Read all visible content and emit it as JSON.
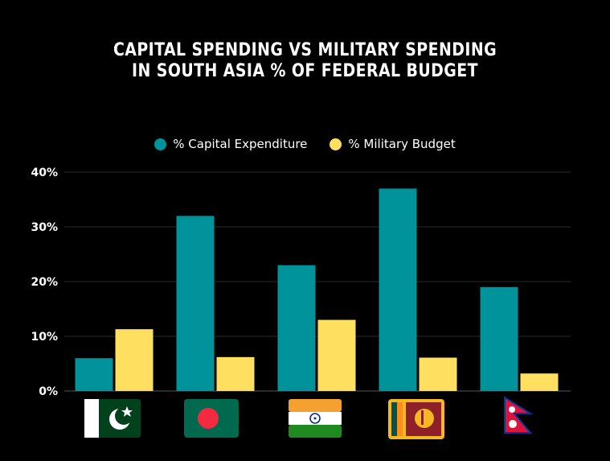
{
  "chart_data": {
    "type": "bar",
    "title_line1": "CAPITAL SPENDING VS MILITARY SPENDING",
    "title_line2": "IN SOUTH ASIA % OF FEDERAL BUDGET",
    "categories": [
      "Pakistan",
      "Bangladesh",
      "India",
      "Sri Lanka",
      "Nepal"
    ],
    "series": [
      {
        "name": "% Capital Expenditure",
        "color": "#00939b",
        "values": [
          6,
          32,
          23,
          37,
          19
        ]
      },
      {
        "name": "% Military Budget",
        "color": "#ffdf60",
        "values": [
          11.3,
          6.2,
          13,
          6.1,
          3.2
        ]
      }
    ],
    "ylim": [
      0,
      40
    ],
    "yticks": [
      "0%",
      "10%",
      "20%",
      "30%",
      "40%"
    ],
    "ytick_values": [
      0,
      10,
      20,
      30,
      40
    ],
    "grid": true,
    "legend_position": "top-center",
    "x_axis_labels": "country flags"
  }
}
